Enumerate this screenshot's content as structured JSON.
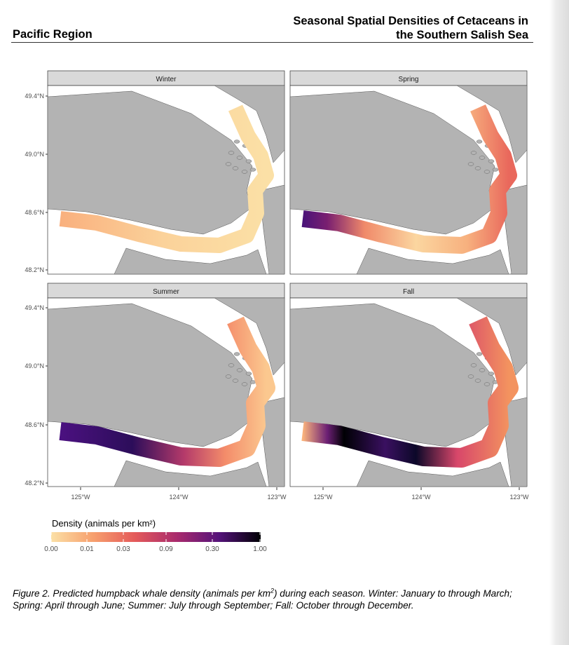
{
  "header": {
    "region": "Pacific Region",
    "doc_title_line1": "Seasonal Spatial Densities of Cetaceans in",
    "doc_title_line2": "the Southern Salish Sea"
  },
  "figure": {
    "panels": [
      {
        "season": "Winter"
      },
      {
        "season": "Spring"
      },
      {
        "season": "Summer"
      },
      {
        "season": "Fall"
      }
    ],
    "y_ticks": [
      "49.4°N",
      "49.0°N",
      "48.6°N",
      "48.2°N"
    ],
    "x_ticks": [
      "125°W",
      "124°W",
      "123°W"
    ],
    "legend": {
      "title": "Density (animals per km²)",
      "breaks": [
        "0.00",
        "0.01",
        "0.03",
        "0.09",
        "0.30",
        "1.00"
      ],
      "low_color": "#fbe0a6",
      "high_color": "#000004"
    },
    "colors": {
      "land": "#b3b3b3",
      "water": "#ffffff",
      "strip_fill": "#d9d9d9"
    }
  },
  "caption": {
    "prefix": "Figure 2. Predicted humpback whale density (animals per km",
    "unit_sup": "2",
    "suffix": ") during each season. Winter: January to through March; Spring: April through June; Summer: July through September; Fall: October through December."
  }
}
